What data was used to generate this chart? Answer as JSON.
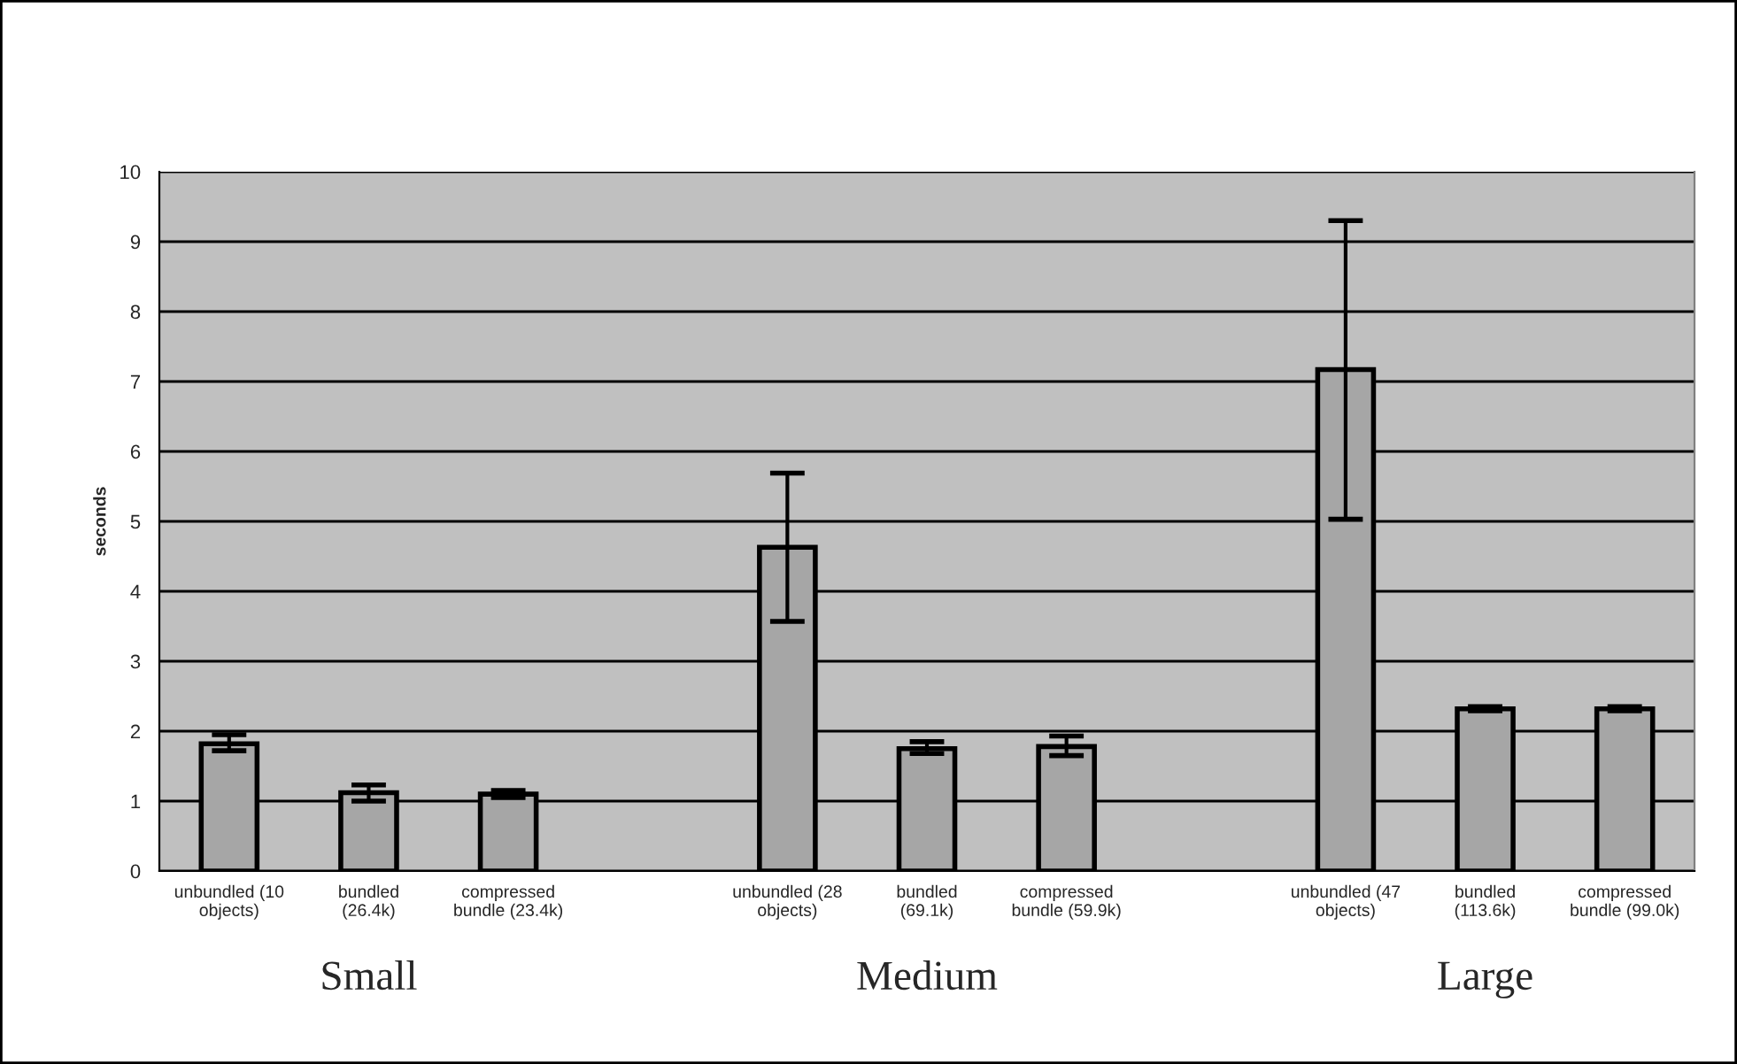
{
  "chart_data": {
    "type": "bar",
    "ylabel": "seconds",
    "categories": [
      "unbundled (10 objects)",
      "bundled (26.4k)",
      "compressed bundle (23.4k)",
      null,
      "unbundled (28 objects)",
      "bundled (69.1k)",
      "compressed bundle (59.9k)",
      null,
      "unbundled (47 objects)",
      "bundled (113.6k)",
      "compressed bundle (99.0k)"
    ],
    "values": [
      1.82,
      1.12,
      1.1,
      null,
      4.63,
      1.75,
      1.78,
      null,
      7.17,
      2.32,
      2.32
    ],
    "errors": [
      [
        1.72,
        1.95
      ],
      [
        1.0,
        1.23
      ],
      [
        1.05,
        1.15
      ],
      null,
      [
        3.57,
        5.69
      ],
      [
        1.68,
        1.85
      ],
      [
        1.65,
        1.93
      ],
      null,
      [
        5.03,
        9.3
      ],
      [
        2.29,
        2.35
      ],
      [
        2.29,
        2.35
      ]
    ],
    "color": "#a6a6a6",
    "ylim": [
      0,
      10
    ],
    "yticks": [
      0,
      1,
      2,
      3,
      4,
      5,
      6,
      7,
      8,
      9,
      10
    ],
    "grid": "y",
    "legend": false,
    "annotations": [
      "Small",
      "Medium",
      "Large"
    ]
  }
}
